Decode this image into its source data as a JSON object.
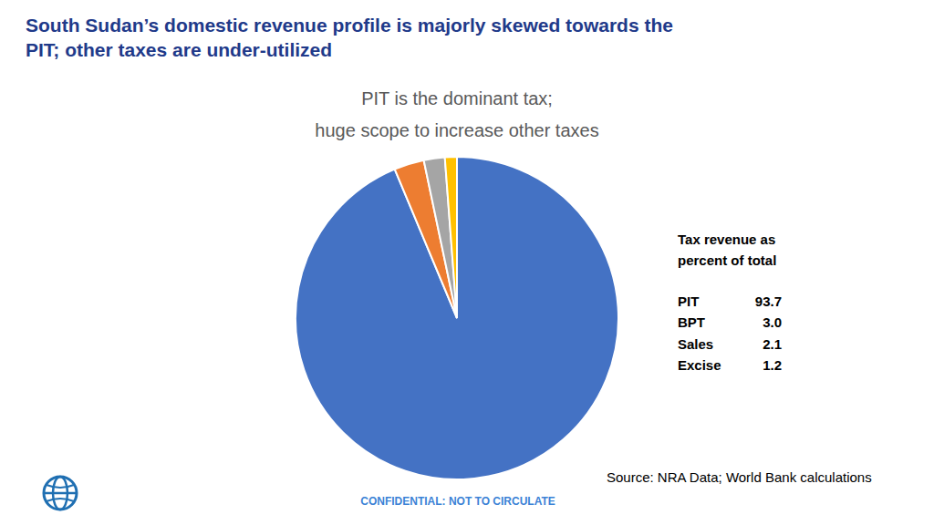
{
  "chart_data": {
    "type": "pie",
    "title": [
      "South Sudan’s domestic revenue profile is majorly skewed towards the",
      "PIT; other taxes are under-utilized"
    ],
    "subtitle": [
      "PIT is the dominant tax;",
      "huge scope to increase other taxes"
    ],
    "annotations": [
      "Tax revenue as",
      "percent of total",
      "Source: NRA Data; World Bank calculations",
      "CONFIDENTIAL: NOT TO CIRCULATE"
    ],
    "categories": [
      "PIT",
      "BPT",
      "Sales",
      "Excise"
    ],
    "values": [
      93.7,
      3.0,
      2.1,
      1.2
    ],
    "value_labels": [
      "93.7",
      "3.0",
      "2.1",
      "1.2"
    ],
    "colors": [
      "#4472c4",
      "#ed7d31",
      "#a5a5a5",
      "#ffc000"
    ]
  }
}
